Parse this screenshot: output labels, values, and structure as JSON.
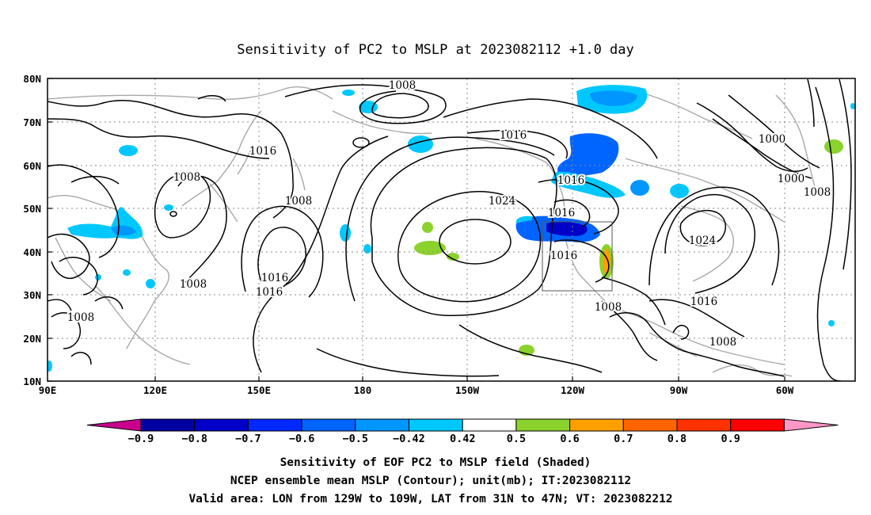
{
  "title": "Sensitivity of PC2 to MSLP at 2023082112 +1.0 day",
  "map": {
    "lat_ticks": [
      "80N",
      "70N",
      "60N",
      "50N",
      "40N",
      "30N",
      "20N",
      "10N"
    ],
    "lon_ticks": [
      "90E",
      "120E",
      "150E",
      "180",
      "150W",
      "120W",
      "90W",
      "60W"
    ],
    "lon_range": [
      "90E",
      "50W"
    ],
    "lat_range": [
      "10N",
      "80N"
    ],
    "valid_box": {
      "lon": [
        "129W",
        "109W"
      ],
      "lat": [
        "31N",
        "47N"
      ]
    },
    "contour_labels": [
      "1008",
      "1016",
      "1016",
      "1000",
      "1008",
      "1000",
      "1008",
      "1016",
      "1024",
      "1016",
      "1016",
      "1016",
      "1024",
      "1016",
      "1016",
      "1008",
      "1008",
      "1016",
      "1008",
      "1008",
      "1008",
      "1008"
    ]
  },
  "colorbar": {
    "labels": [
      "-0.9",
      "-0.8",
      "-0.7",
      "-0.6",
      "-0.5",
      "-0.42",
      "0.42",
      "0.5",
      "0.6",
      "0.7",
      "0.8",
      "0.9"
    ],
    "colors": [
      "#0000a0",
      "#0000c8",
      "#0028ff",
      "#0064ff",
      "#0096ff",
      "#00c8ff",
      "#ffffff",
      "#8cd22d",
      "#ffa000",
      "#ff6400",
      "#ff3200",
      "#ff0000"
    ],
    "end_low": "#c8008c",
    "end_high": "#ff96c8"
  },
  "captions": [
    "Sensitivity of EOF PC2 to MSLP field (Shaded)",
    "NCEP ensemble mean MSLP (Contour); unit(mb); IT:2023082112",
    "Valid area: LON from 129W to 109W, LAT from 31N to 47N; VT: 2023082212"
  ]
}
